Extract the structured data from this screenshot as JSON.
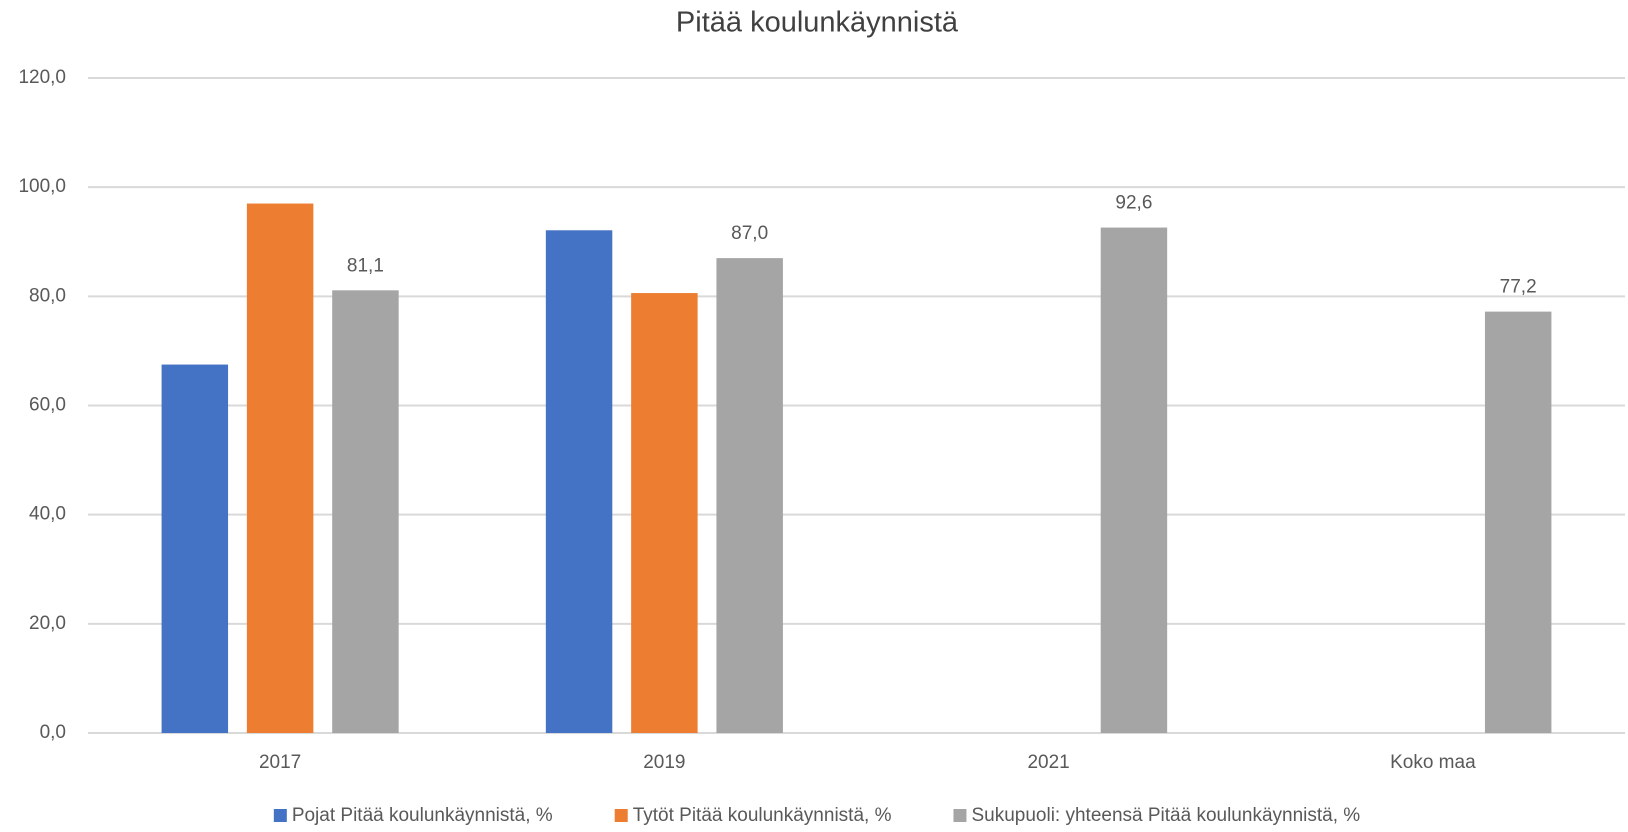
{
  "chart_data": {
    "type": "bar",
    "title": "Pitää koulunkäynnistä",
    "categories": [
      "2017",
      "2019",
      "2021",
      "Koko maa"
    ],
    "series": [
      {
        "name": "Pojat Pitää koulunkäynnistä, %",
        "color": "#4472c4",
        "values": [
          67.5,
          92.1,
          null,
          null
        ]
      },
      {
        "name": "Tytöt Pitää koulunkäynnistä, %",
        "color": "#ed7d31",
        "values": [
          97.0,
          80.6,
          null,
          null
        ]
      },
      {
        "name": "Sukupuoli: yhteensä Pitää koulunkäynnistä, %",
        "color": "#a5a5a5",
        "values": [
          81.1,
          87.0,
          92.6,
          77.2
        ],
        "value_labels": [
          "81,1",
          "87,0",
          "92,6",
          "77,2"
        ]
      }
    ],
    "ylim": [
      0,
      120
    ],
    "yticks": [
      {
        "value": 0,
        "label": "0,0"
      },
      {
        "value": 20,
        "label": "20,0"
      },
      {
        "value": 40,
        "label": "40,0"
      },
      {
        "value": 60,
        "label": "60,0"
      },
      {
        "value": 80,
        "label": "80,0"
      },
      {
        "value": 100,
        "label": "100,0"
      },
      {
        "value": 120,
        "label": "120,0"
      }
    ],
    "grid": true,
    "legend": "bottom"
  }
}
